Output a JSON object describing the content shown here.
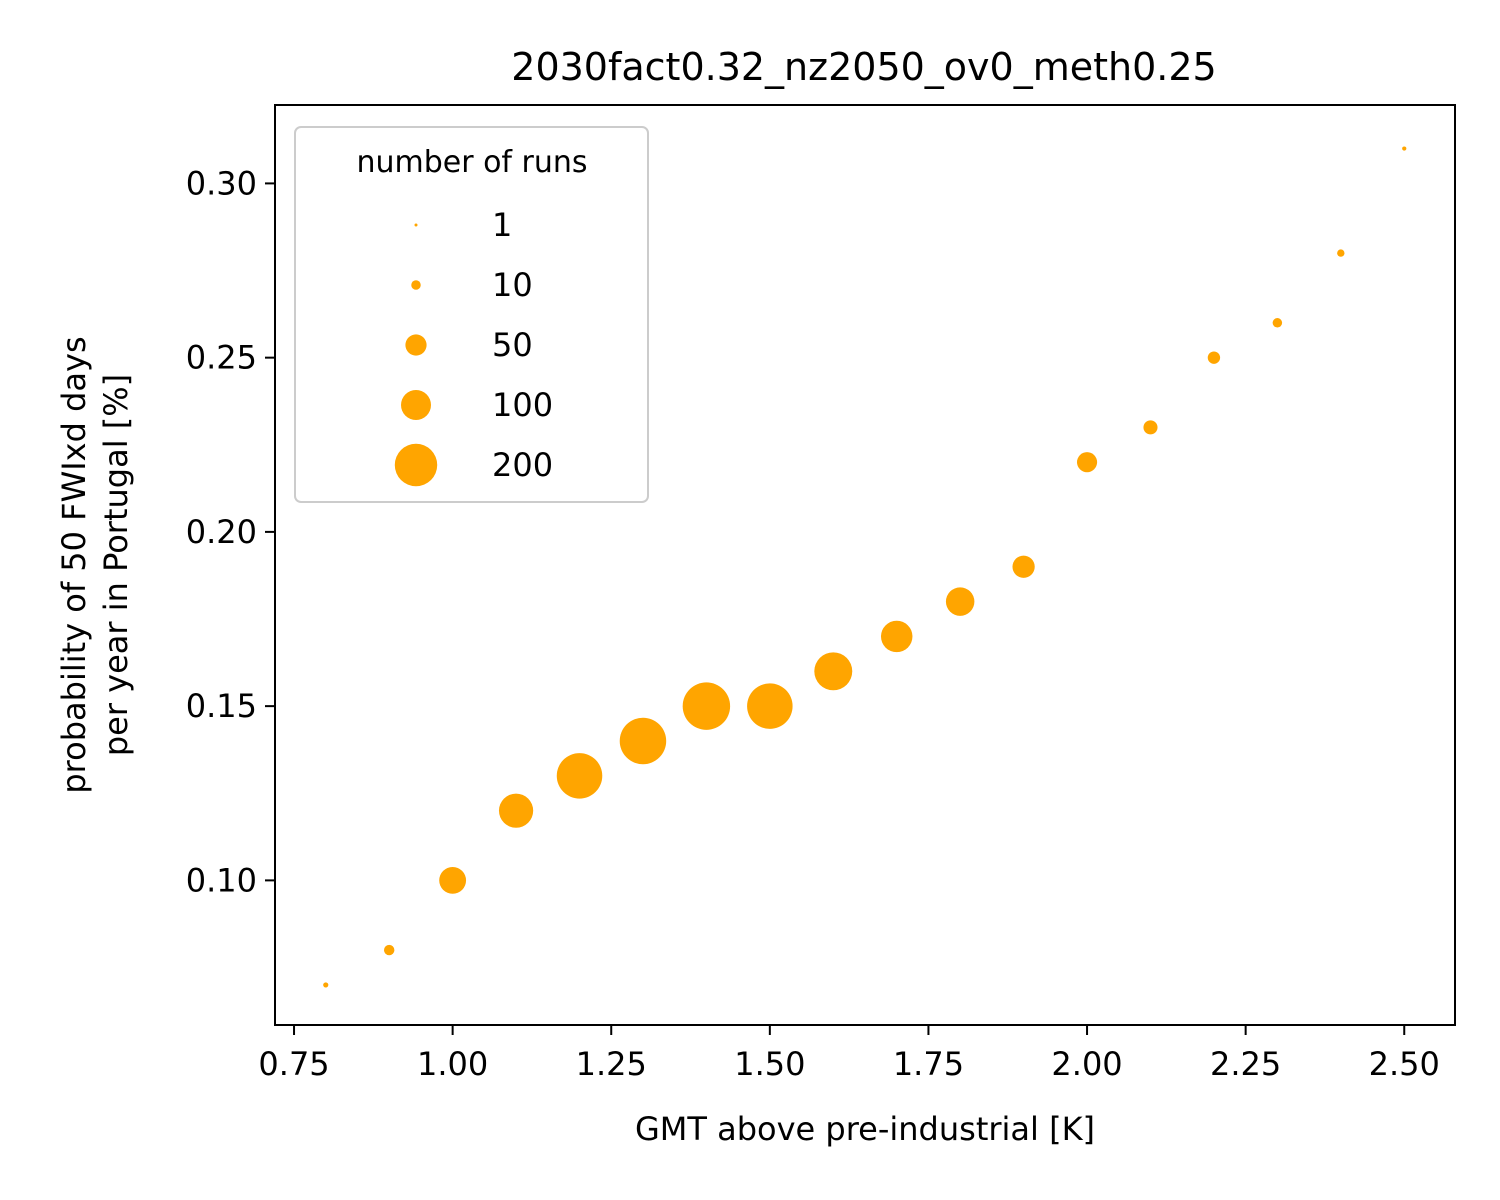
{
  "chart_data": {
    "type": "scatter",
    "title": "2030fact0.32_nz2050_ov0_meth0.25",
    "xlabel": "GMT above pre-industrial [K]",
    "ylabel_lines": [
      "probability of 50 FWIxd days",
      "per year in Portugal [%]"
    ],
    "xlim": [
      0.72,
      2.58
    ],
    "ylim": [
      0.0585,
      0.3225
    ],
    "xticks": [
      0.75,
      1.0,
      1.25,
      1.5,
      1.75,
      2.0,
      2.25,
      2.5
    ],
    "xtick_labels": [
      "0.75",
      "1.00",
      "1.25",
      "1.50",
      "1.75",
      "2.00",
      "2.25",
      "2.50"
    ],
    "yticks": [
      0.1,
      0.15,
      0.2,
      0.25,
      0.3
    ],
    "ytick_labels": [
      "0.10",
      "0.15",
      "0.20",
      "0.25",
      "0.30"
    ],
    "marker_color": "#ffa500",
    "legend": {
      "title": "number of runs",
      "placement": "upper left",
      "entries": [
        {
          "label": "1",
          "runs": 1
        },
        {
          "label": "10",
          "runs": 10
        },
        {
          "label": "50",
          "runs": 50
        },
        {
          "label": "100",
          "runs": 100
        },
        {
          "label": "200",
          "runs": 200
        }
      ]
    },
    "points": [
      {
        "x": 0.8,
        "y": 0.07,
        "runs": 3
      },
      {
        "x": 0.9,
        "y": 0.08,
        "runs": 12
      },
      {
        "x": 1.0,
        "y": 0.1,
        "runs": 80
      },
      {
        "x": 1.1,
        "y": 0.12,
        "runs": 130
      },
      {
        "x": 1.2,
        "y": 0.13,
        "runs": 230
      },
      {
        "x": 1.3,
        "y": 0.14,
        "runs": 240
      },
      {
        "x": 1.4,
        "y": 0.15,
        "runs": 250
      },
      {
        "x": 1.5,
        "y": 0.15,
        "runs": 230
      },
      {
        "x": 1.6,
        "y": 0.16,
        "runs": 160
      },
      {
        "x": 1.7,
        "y": 0.17,
        "runs": 110
      },
      {
        "x": 1.8,
        "y": 0.18,
        "runs": 90
      },
      {
        "x": 1.9,
        "y": 0.19,
        "runs": 55
      },
      {
        "x": 2.0,
        "y": 0.22,
        "runs": 45
      },
      {
        "x": 2.1,
        "y": 0.23,
        "runs": 22
      },
      {
        "x": 2.2,
        "y": 0.25,
        "runs": 17
      },
      {
        "x": 2.3,
        "y": 0.26,
        "runs": 10
      },
      {
        "x": 2.4,
        "y": 0.28,
        "runs": 6
      },
      {
        "x": 2.5,
        "y": 0.31,
        "runs": 2
      }
    ]
  }
}
